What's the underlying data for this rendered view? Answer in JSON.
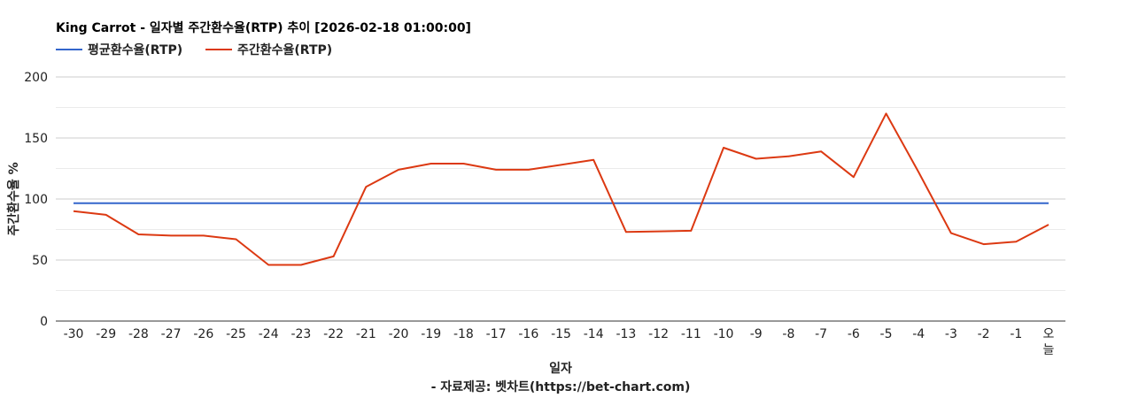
{
  "chart_data": {
    "type": "line",
    "title": "King Carrot - 일자별 주간환수율(RTP) 추이 [2026-02-18 01:00:00]",
    "xlabel": "일자",
    "ylabel": "주간환수율 %",
    "source": "- 자료제공: 벳차트(https://bet-chart.com)",
    "legend_position": "top-left",
    "grid": true,
    "ylim": [
      0,
      200
    ],
    "yticks": [
      "0",
      "50",
      "100",
      "150",
      "200"
    ],
    "categories": [
      "-30",
      "-29",
      "-28",
      "-27",
      "-26",
      "-25",
      "-24",
      "-23",
      "-22",
      "-21",
      "-20",
      "-19",
      "-18",
      "-17",
      "-16",
      "-15",
      "-14",
      "-13",
      "-12",
      "-11",
      "-10",
      "-9",
      "-8",
      "-7",
      "-6",
      "-5",
      "-4",
      "-3",
      "-2",
      "-1",
      "오늘"
    ],
    "series": [
      {
        "name": "평균환수율(RTP)",
        "color": "#3366cc",
        "values": [
          96.5,
          96.5,
          96.5,
          96.5,
          96.5,
          96.5,
          96.5,
          96.5,
          96.5,
          96.5,
          96.5,
          96.5,
          96.5,
          96.5,
          96.5,
          96.5,
          96.5,
          96.5,
          96.5,
          96.5,
          96.5,
          96.5,
          96.5,
          96.5,
          96.5,
          96.5,
          96.5,
          96.5,
          96.5,
          96.5,
          96.5
        ]
      },
      {
        "name": "주간환수율(RTP)",
        "color": "#dc3912",
        "values": [
          90,
          87,
          71,
          70,
          70,
          67,
          46,
          46,
          53,
          110,
          124,
          129,
          129,
          124,
          124,
          128,
          132,
          73,
          73.5,
          74,
          142,
          133,
          135,
          139,
          118,
          170,
          122,
          72,
          63,
          65,
          79
        ]
      }
    ]
  }
}
